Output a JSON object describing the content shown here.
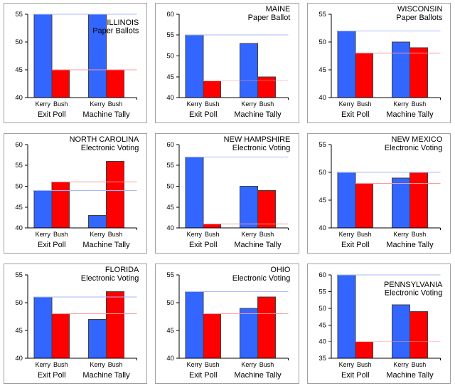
{
  "colors": {
    "kerry_bar": "#3366FF",
    "bush_bar": "#FF0000",
    "kerry_reference_line": "#A8B8F8",
    "bush_reference_line": "#FF9999",
    "bar_border": "#404040",
    "axis": "#000000",
    "panel_border": "#A0A0A0",
    "text": "#000000",
    "background": "#FFFFFF"
  },
  "labels": {
    "candidates": [
      "Kerry",
      "Bush"
    ],
    "groups": [
      "Exit Poll",
      "Machine Tally"
    ]
  },
  "chart_data": [
    {
      "type": "bar",
      "title": "ILLINOIS",
      "subtitle": "Paper Ballots",
      "categories": [
        "Exit Poll",
        "Machine Tally"
      ],
      "series": [
        {
          "name": "Kerry",
          "values": [
            55,
            55
          ]
        },
        {
          "name": "Bush",
          "values": [
            45,
            45
          ]
        }
      ],
      "reference_lines": {
        "Kerry": 55,
        "Bush": 45
      },
      "ylim": [
        40,
        55
      ],
      "yticks": [
        40,
        45,
        50,
        55
      ],
      "title_baseline_y": 30
    },
    {
      "type": "bar",
      "title": "MAINE",
      "subtitle": "Paper Ballot",
      "categories": [
        "Exit Poll",
        "Machine Tally"
      ],
      "series": [
        {
          "name": "Kerry",
          "values": [
            55,
            53
          ]
        },
        {
          "name": "Bush",
          "values": [
            44,
            45
          ]
        }
      ],
      "reference_lines": {
        "Kerry": 55,
        "Bush": 44
      },
      "ylim": [
        40,
        60
      ],
      "yticks": [
        40,
        45,
        50,
        55,
        60
      ],
      "title_baseline_y": 11
    },
    {
      "type": "bar",
      "title": "WISCONSIN",
      "subtitle": "Paper Ballots",
      "categories": [
        "Exit Poll",
        "Machine Tally"
      ],
      "series": [
        {
          "name": "Kerry",
          "values": [
            52,
            50
          ]
        },
        {
          "name": "Bush",
          "values": [
            48,
            49
          ]
        }
      ],
      "reference_lines": {
        "Kerry": 52,
        "Bush": 48
      },
      "ylim": [
        40,
        55
      ],
      "yticks": [
        40,
        45,
        50,
        55
      ],
      "title_baseline_y": 11
    },
    {
      "type": "bar",
      "title": "NORTH CAROLINA",
      "subtitle": "Electronic Voting",
      "categories": [
        "Exit Poll",
        "Machine Tally"
      ],
      "series": [
        {
          "name": "Kerry",
          "values": [
            49,
            43
          ]
        },
        {
          "name": "Bush",
          "values": [
            51,
            56
          ]
        }
      ],
      "reference_lines": {
        "Kerry": 49,
        "Bush": 51
      },
      "ylim": [
        40,
        60
      ],
      "yticks": [
        40,
        45,
        50,
        55,
        60
      ],
      "title_baseline_y": 11
    },
    {
      "type": "bar",
      "title": "NEW HAMPSHIRE",
      "subtitle": "Electronic Voting",
      "categories": [
        "Exit Poll",
        "Machine Tally"
      ],
      "series": [
        {
          "name": "Kerry",
          "values": [
            57,
            50
          ]
        },
        {
          "name": "Bush",
          "values": [
            41,
            49
          ]
        }
      ],
      "reference_lines": {
        "Kerry": 57,
        "Bush": 41
      },
      "ylim": [
        40,
        60
      ],
      "yticks": [
        40,
        45,
        50,
        55,
        60
      ],
      "title_baseline_y": 11
    },
    {
      "type": "bar",
      "title": "NEW MEXICO",
      "subtitle": "Electronic Voting",
      "categories": [
        "Exit Poll",
        "Machine Tally"
      ],
      "series": [
        {
          "name": "Kerry",
          "values": [
            50,
            49
          ]
        },
        {
          "name": "Bush",
          "values": [
            48,
            50
          ]
        }
      ],
      "reference_lines": {
        "Kerry": 50,
        "Bush": 48
      },
      "ylim": [
        40,
        55
      ],
      "yticks": [
        40,
        45,
        50,
        55
      ],
      "title_baseline_y": 11
    },
    {
      "type": "bar",
      "title": "FLORIDA",
      "subtitle": "Electronic Voting",
      "categories": [
        "Exit Poll",
        "Machine Tally"
      ],
      "series": [
        {
          "name": "Kerry",
          "values": [
            51,
            47
          ]
        },
        {
          "name": "Bush",
          "values": [
            48,
            52
          ]
        }
      ],
      "reference_lines": {
        "Kerry": 51,
        "Bush": 48
      },
      "ylim": [
        40,
        55
      ],
      "yticks": [
        40,
        45,
        50,
        55
      ],
      "title_baseline_y": 11
    },
    {
      "type": "bar",
      "title": "OHIO",
      "subtitle": "Electronic Voting",
      "categories": [
        "Exit Poll",
        "Machine Tally"
      ],
      "series": [
        {
          "name": "Kerry",
          "values": [
            52,
            49
          ]
        },
        {
          "name": "Bush",
          "values": [
            48,
            51
          ]
        }
      ],
      "reference_lines": {
        "Kerry": 52,
        "Bush": 48
      },
      "ylim": [
        40,
        55
      ],
      "yticks": [
        40,
        45,
        50,
        55
      ],
      "title_baseline_y": 11
    },
    {
      "type": "bar",
      "title": "PENNSYLVANIA",
      "subtitle": "Electronic Voting",
      "categories": [
        "Exit Poll",
        "Machine Tally"
      ],
      "series": [
        {
          "name": "Kerry",
          "values": [
            60,
            51
          ]
        },
        {
          "name": "Bush",
          "values": [
            40,
            49
          ]
        }
      ],
      "reference_lines": {
        "Kerry": 60,
        "Bush": 40
      },
      "ylim": [
        35,
        60
      ],
      "yticks": [
        35,
        40,
        45,
        50,
        55,
        60
      ],
      "title_baseline_y": 32
    }
  ]
}
